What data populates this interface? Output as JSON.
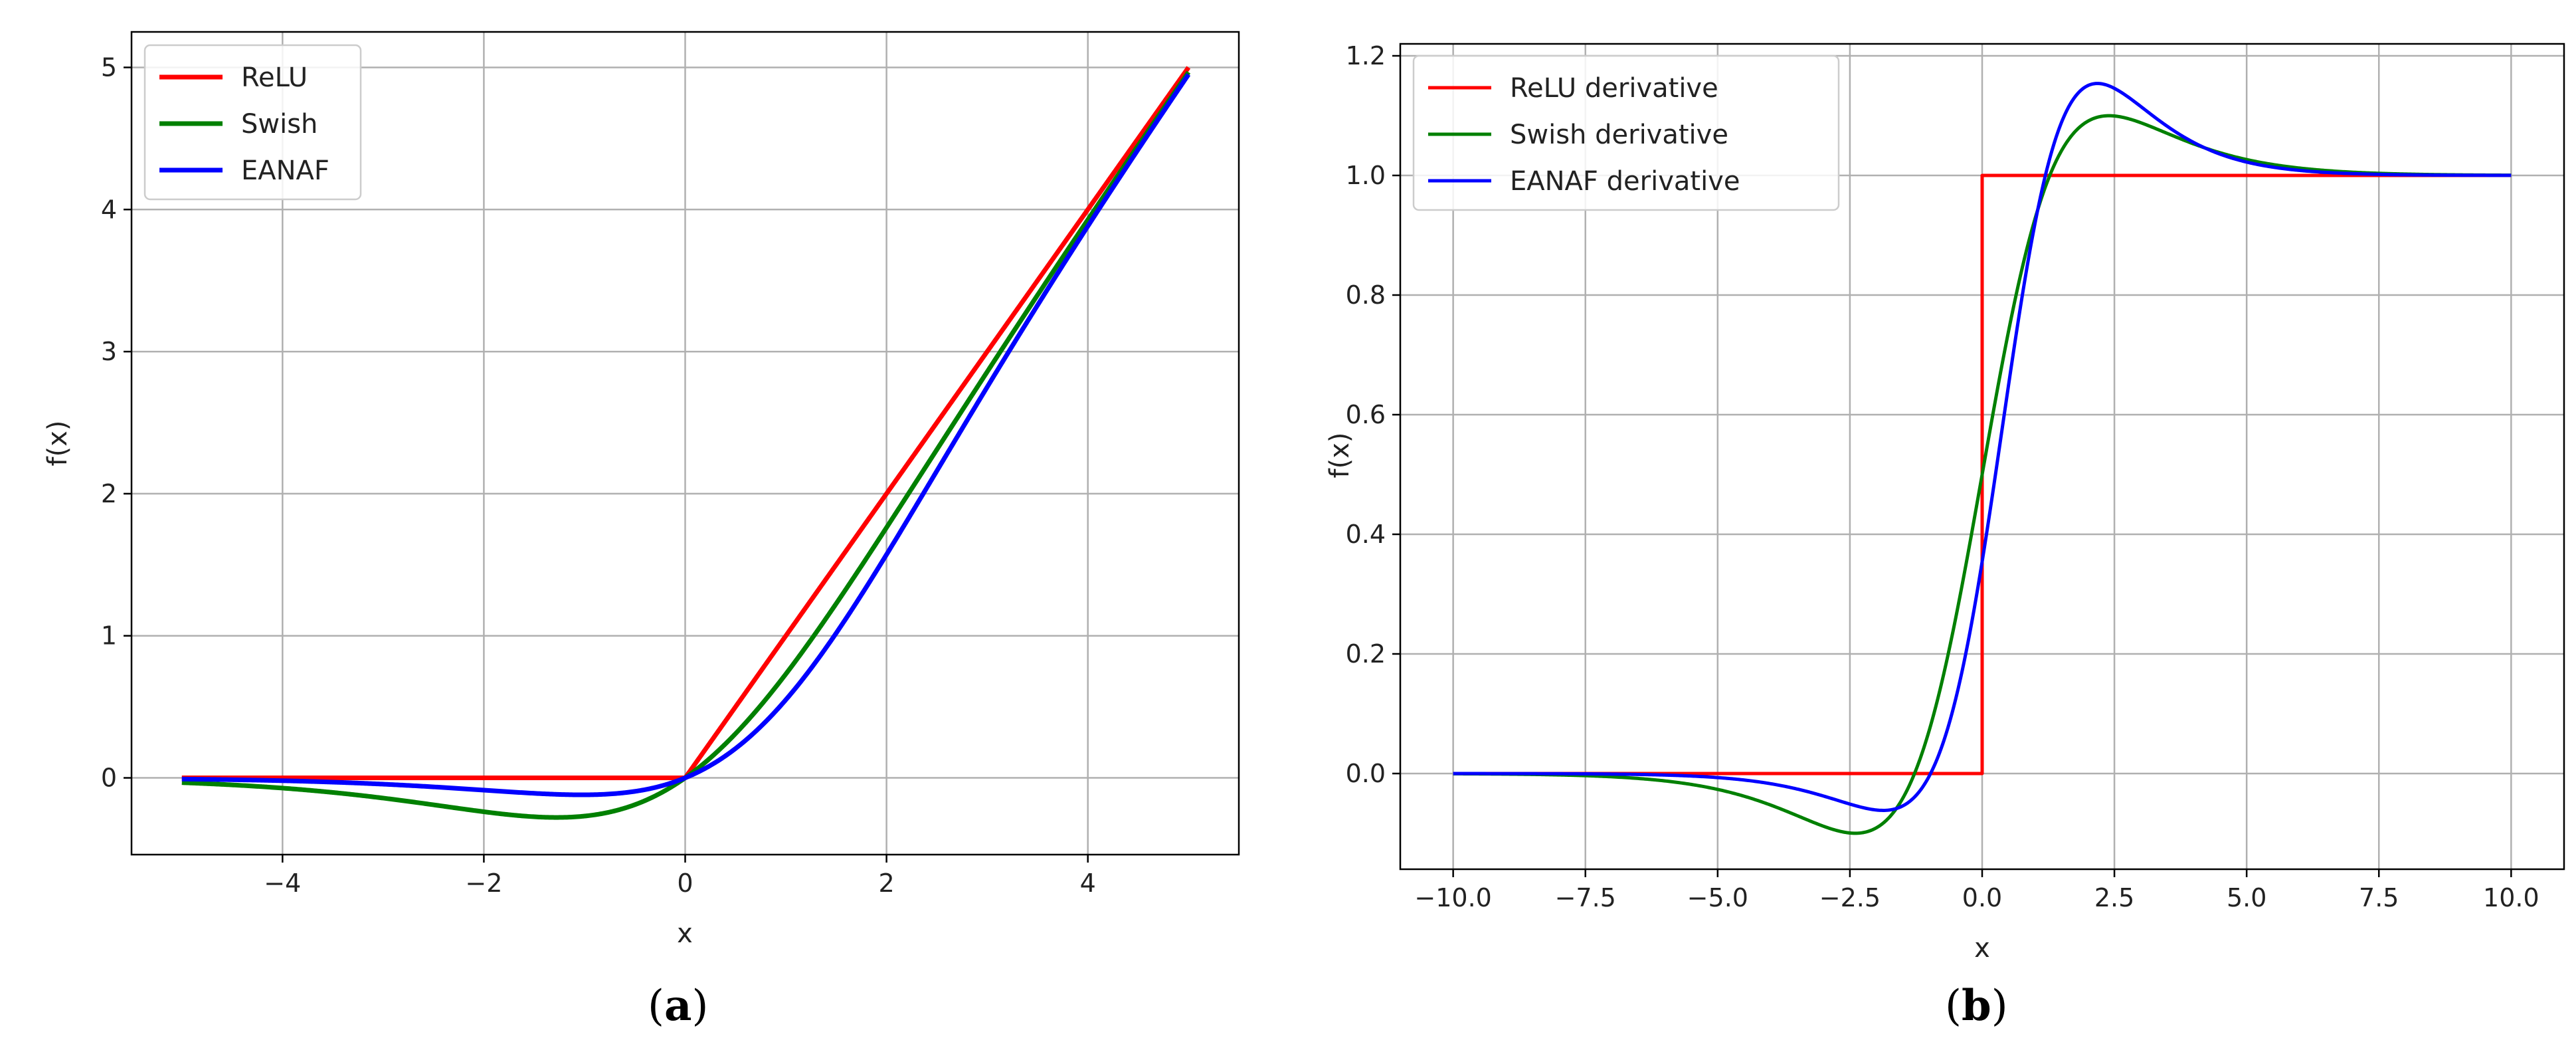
{
  "chart_data": [
    {
      "type": "line",
      "panel_caption": "a",
      "xlabel": "x",
      "ylabel": "f(x)",
      "xlim": [
        -5.5,
        5.5
      ],
      "ylim": [
        -0.54,
        5.25
      ],
      "xticks": [
        -4,
        -2,
        0,
        2,
        4
      ],
      "xtick_labels": [
        "−4",
        "−2",
        "0",
        "2",
        "4"
      ],
      "yticks": [
        0,
        1,
        2,
        3,
        4,
        5
      ],
      "ytick_labels": [
        "0",
        "1",
        "2",
        "3",
        "4",
        "5"
      ],
      "grid": true,
      "legend_position": "top-left",
      "x_range": [
        -5,
        5
      ],
      "series": [
        {
          "name": "ReLU",
          "color": "#ff0000",
          "function": "relu"
        },
        {
          "name": "Swish",
          "color": "#008000",
          "function": "swish"
        },
        {
          "name": "EANAF",
          "color": "#0000ff",
          "function": "eanaf"
        }
      ],
      "sample_points": {
        "x": [
          -5,
          -4,
          -3,
          -2,
          -1.2,
          -1,
          0,
          1,
          2,
          3,
          4,
          5
        ],
        "ReLU": [
          0,
          0,
          0,
          0,
          0,
          0,
          0,
          1,
          2,
          3,
          4,
          5
        ],
        "Swish": [
          -0.03,
          -0.07,
          -0.14,
          -0.24,
          -0.28,
          -0.27,
          0,
          0.73,
          1.76,
          2.86,
          3.93,
          4.97
        ],
        "EANAF": [
          -0.01,
          -0.04,
          -0.08,
          -0.12,
          -0.15,
          -0.14,
          0,
          0.54,
          1.52,
          2.65,
          3.87,
          4.95
        ]
      }
    },
    {
      "type": "line",
      "panel_caption": "b",
      "xlabel": "x",
      "ylabel": "f(x)",
      "xlim": [
        -11,
        11
      ],
      "ylim": [
        -0.16,
        1.22
      ],
      "xticks": [
        -10,
        -7.5,
        -5,
        -2.5,
        0,
        2.5,
        5,
        7.5,
        10
      ],
      "xtick_labels": [
        "−10.0",
        "−7.5",
        "−5.0",
        "−2.5",
        "0.0",
        "2.5",
        "5.0",
        "7.5",
        "10.0"
      ],
      "yticks": [
        0,
        0.2,
        0.4,
        0.6,
        0.8,
        1.0,
        1.2
      ],
      "ytick_labels": [
        "0.0",
        "0.2",
        "0.4",
        "0.6",
        "0.8",
        "1.0",
        "1.2"
      ],
      "grid": true,
      "legend_position": "top-left",
      "x_range": [
        -10,
        10
      ],
      "series": [
        {
          "name": "ReLU derivative",
          "color": "#ff0000",
          "function": "relu_derivative"
        },
        {
          "name": "Swish derivative",
          "color": "#008000",
          "function": "swish_derivative"
        },
        {
          "name": "EANAF derivative",
          "color": "#0000ff",
          "function": "eanaf_derivative"
        }
      ],
      "sample_points": {
        "x": [
          -10,
          -7.5,
          -5,
          -2.5,
          -1.3,
          0,
          1.3,
          2.5,
          5,
          7.5,
          10
        ],
        "ReLU derivative": [
          0,
          0,
          0,
          0,
          0,
          1,
          1,
          1,
          1,
          1,
          1
        ],
        "Swish derivative": [
          0,
          -0.004,
          -0.03,
          -0.1,
          0.0,
          0.5,
          1.0,
          1.1,
          1.03,
          1.005,
          1.0
        ],
        "EANAF derivative": [
          0,
          -0.002,
          -0.015,
          -0.055,
          0.0,
          0.32,
          1.0,
          1.16,
          1.05,
          1.005,
          1.0
        ]
      }
    }
  ]
}
